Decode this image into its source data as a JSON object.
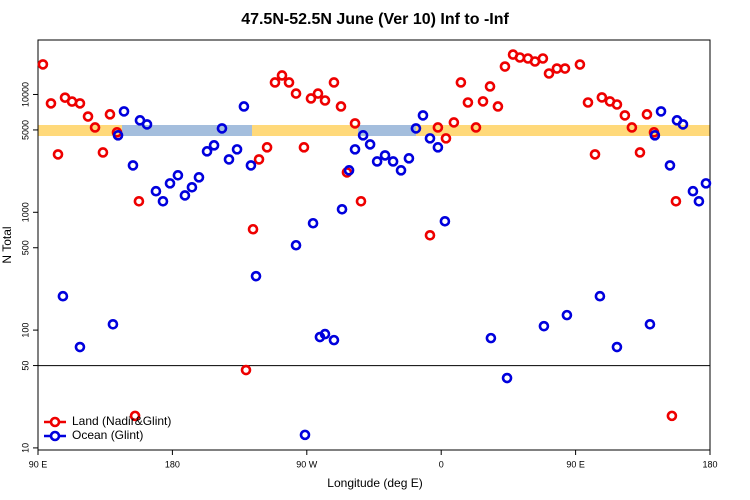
{
  "chart_data": {
    "type": "scatter",
    "title": "47.5N-52.5N June (Ver 10)   Inf to -Inf",
    "xlabel": "Longitude (deg E)",
    "ylabel": "N Total",
    "xlim": [
      90,
      540
    ],
    "xticks": [
      {
        "value": 90,
        "label": "90 E"
      },
      {
        "value": 180,
        "label": "180"
      },
      {
        "value": 270,
        "label": "90 W"
      },
      {
        "value": 360,
        "label": "0"
      },
      {
        "value": 450,
        "label": "90 E"
      },
      {
        "value": 540,
        "label": "180"
      }
    ],
    "ylim": [
      9.6,
      29000
    ],
    "yticks": [
      10,
      50,
      100,
      500,
      1000,
      5000,
      10000
    ],
    "log_y": true,
    "legend": "bottom-left",
    "series": [
      {
        "name": "Land (Nadir&Glint)",
        "color": "#ee0000",
        "x": [
          93.3,
          98.7,
          103.4,
          108.1,
          112.8,
          118.1,
          123.5,
          128.2,
          133.5,
          138.2,
          142.9,
          155.0,
          157.6,
          229.3,
          234.0,
          238.0,
          243.4,
          248.7,
          253.4,
          258.1,
          262.8,
          268.1,
          272.8,
          277.5,
          282.2,
          288.2,
          292.9,
          296.9,
          302.3,
          306.3,
          352.5,
          357.8,
          363.2,
          368.5,
          373.2,
          377.9,
          383.3,
          388.0,
          392.7,
          398.0,
          402.7,
          408.1,
          412.7,
          418.1,
          422.8,
          428.1,
          432.2,
          437.5,
          442.9,
          452.9,
          458.3,
          463.0,
          467.6,
          473.0,
          477.7,
          483.0,
          487.7,
          493.1,
          497.8,
          502.5,
          514.5,
          517.2
        ],
        "values": [
          18000,
          8400,
          3100,
          9400,
          8700,
          8400,
          6500,
          5250,
          3220,
          6780,
          4770,
          18.7,
          1240,
          45.8,
          718,
          2810,
          3560,
          12650,
          14500,
          12650,
          10180,
          3560,
          9250,
          10180,
          8890,
          12650,
          7910,
          2180,
          5680,
          1240,
          638,
          5250,
          4240,
          5790,
          12650,
          8550,
          5250,
          8730,
          11700,
          7910,
          17260,
          21800,
          20600,
          20200,
          19050,
          20200,
          15070,
          16600,
          16600,
          17950,
          8550,
          3100,
          9440,
          8730,
          8220,
          6640,
          5250,
          3220,
          6780,
          4770,
          18.7,
          1240
        ]
      },
      {
        "name": "Ocean (Glint)",
        "color": "#0000dd",
        "x": [
          106.7,
          118.1,
          140.2,
          143.6,
          147.6,
          153.6,
          158.3,
          163.0,
          169.0,
          173.7,
          178.4,
          183.7,
          188.4,
          193.1,
          197.8,
          203.2,
          207.9,
          213.2,
          217.9,
          223.3,
          227.9,
          232.6,
          236.0,
          262.8,
          268.8,
          274.2,
          278.8,
          282.2,
          288.2,
          293.6,
          298.3,
          302.3,
          307.7,
          312.4,
          317.1,
          322.4,
          327.8,
          333.1,
          338.4,
          343.1,
          347.8,
          352.5,
          357.8,
          362.5,
          393.3,
          404.1,
          428.8,
          444.2,
          466.3,
          477.7,
          499.8,
          503.1,
          507.2,
          513.2,
          517.9,
          521.9,
          528.6,
          532.6,
          537.3
        ],
        "values": [
          194,
          71.8,
          112,
          4500,
          7180,
          2500,
          6030,
          5570,
          1510,
          1240,
          1760,
          2060,
          1390,
          1630,
          1980,
          3290,
          3700,
          5150,
          2810,
          3420,
          7910,
          2500,
          287,
          525,
          12.9,
          807,
          87.3,
          92.5,
          82.2,
          1060,
          2270,
          3420,
          4500,
          3770,
          2700,
          3040,
          2700,
          2270,
          2870,
          5150,
          6640,
          4240,
          3560,
          839,
          85.5,
          39.2,
          108,
          134,
          194,
          71.8,
          112,
          4500,
          7180,
          2500,
          6030,
          5570,
          1510,
          1240,
          1760
        ]
      }
    ]
  }
}
